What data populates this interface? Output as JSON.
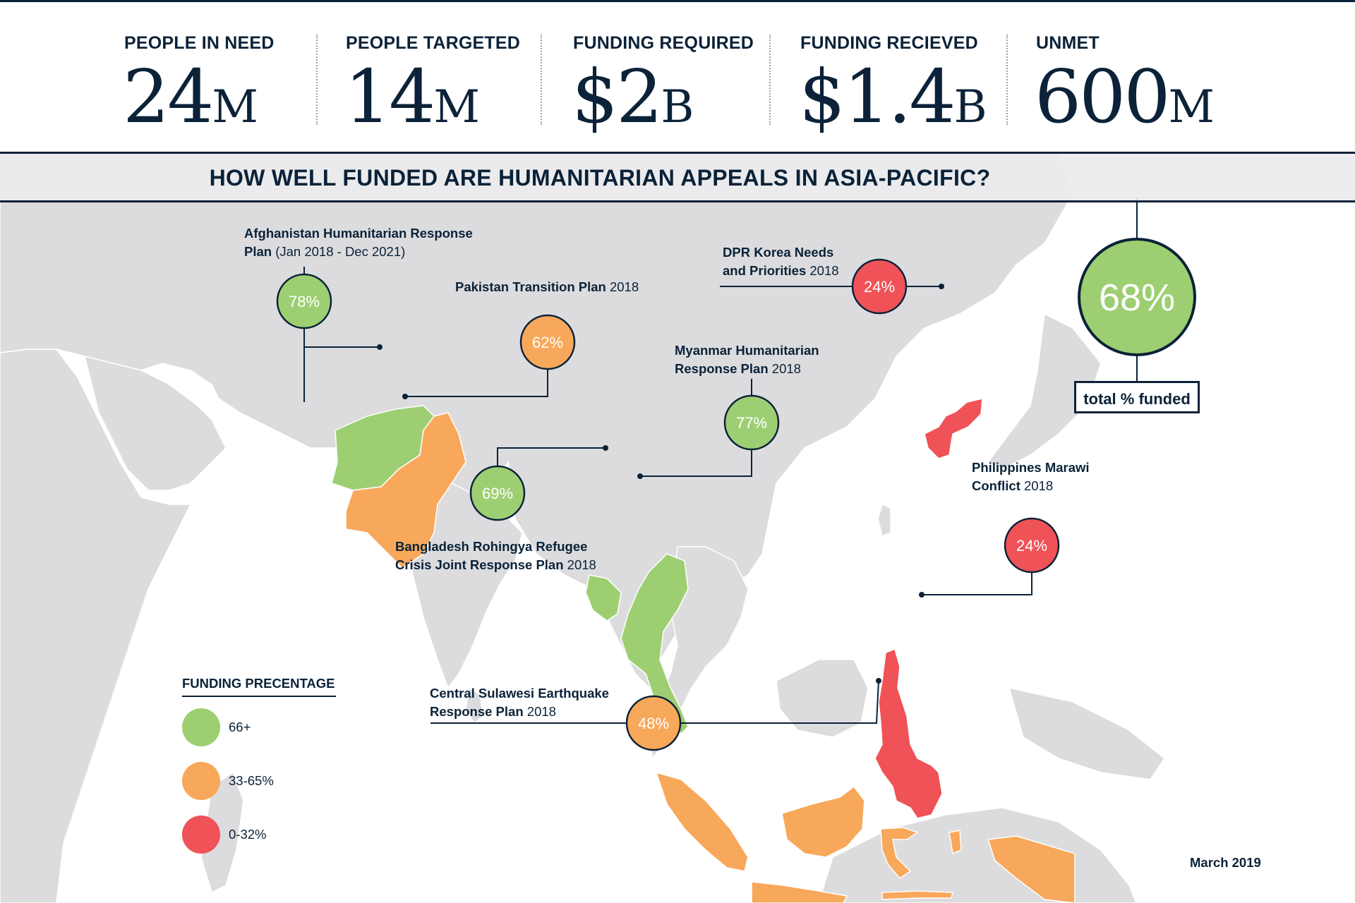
{
  "stats": [
    {
      "label": "PEOPLE IN NEED",
      "number": "24",
      "unit": "M"
    },
    {
      "label": "PEOPLE TARGETED",
      "number": "14",
      "unit": "M"
    },
    {
      "label": "FUNDING REQUIRED",
      "number": "$2",
      "unit": "B"
    },
    {
      "label": "FUNDING RECIEVED",
      "number": "$1.4",
      "unit": "B"
    },
    {
      "label": "UNMET",
      "number": "600",
      "unit": "M"
    }
  ],
  "title": "HOW WELL FUNDED ARE HUMANITARIAN APPEALS IN ASIA-PACIFIC?",
  "appeals": [
    {
      "name_line1": "Afghanistan Humanitarian Response",
      "name_line2": "Plan",
      "year": "(Jan 2018 - Dec 2021)",
      "percent": "78%",
      "funded": 78,
      "category": "66+"
    },
    {
      "name_line1": "Pakistan Transition Plan",
      "year": "2018",
      "percent": "62%",
      "funded": 62,
      "category": "33-65%"
    },
    {
      "name_line1": "DPR Korea Needs",
      "name_line2": "and Priorities",
      "year": "2018",
      "percent": "24%",
      "funded": 24,
      "category": "0-32%"
    },
    {
      "name_line1": "Myanmar Humanitarian",
      "name_line2": "Response Plan",
      "year": "2018",
      "percent": "77%",
      "funded": 77,
      "category": "66+"
    },
    {
      "name_line1": "Bangladesh Rohingya Refugee",
      "name_line2": "Crisis Joint Response Plan",
      "year": "2018",
      "percent": "69%",
      "funded": 69,
      "category": "66+"
    },
    {
      "name_line1": "Philippines Marawi",
      "name_line2": "Conflict",
      "year": "2018",
      "percent": "24%",
      "funded": 24,
      "category": "0-32%"
    },
    {
      "name_line1": "Central Sulawesi Earthquake",
      "name_line2": "Response Plan",
      "year": "2018",
      "percent": "48%",
      "funded": 48,
      "category": "33-65%"
    }
  ],
  "total": {
    "percent": "68%",
    "funded": 68,
    "label": "total % funded"
  },
  "legend": {
    "title": "FUNDING PRECENTAGE",
    "items": [
      {
        "label": "66+",
        "color": "#9dcf72"
      },
      {
        "label": "33-65%",
        "color": "#f8a85a"
      },
      {
        "label": "0-32%",
        "color": "#ef5257"
      }
    ]
  },
  "date": "March 2019",
  "colors": {
    "navy": "#0b2238",
    "land": "#dcdcde",
    "sea": "#ffffff",
    "green": "#9dcf72",
    "orange": "#f8a85a",
    "red": "#ef5257"
  }
}
